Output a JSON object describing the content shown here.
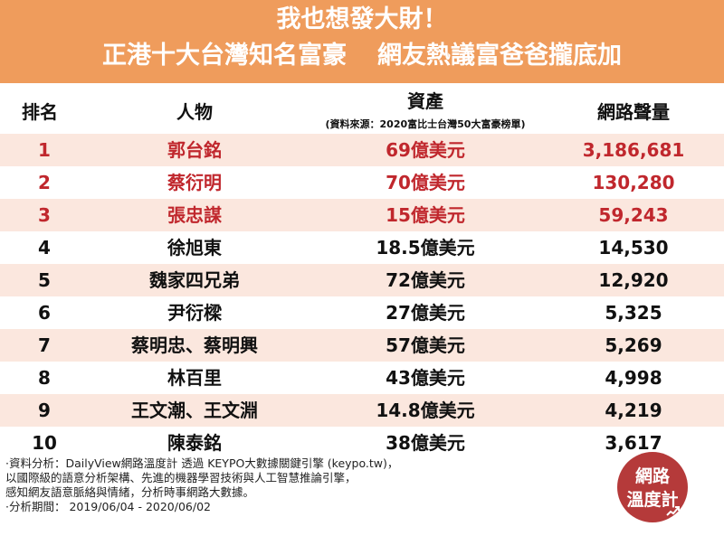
{
  "title": {
    "line1": "我也想發大財！",
    "line2_left": "正港十大台灣知名富豪",
    "line2_right": "網友熱議富爸爸攏底加"
  },
  "table": {
    "headers": {
      "rank": "排名",
      "person": "人物",
      "asset": "資產",
      "asset_note": "(資料來源：2020富比士台灣50大富豪榜單)",
      "volume": "網路聲量"
    },
    "rows": [
      {
        "rank": "1",
        "person": "郭台銘",
        "asset": "69億美元",
        "volume": "3,186,681"
      },
      {
        "rank": "2",
        "person": "蔡衍明",
        "asset": "70億美元",
        "volume": "130,280"
      },
      {
        "rank": "3",
        "person": "張忠謀",
        "asset": "15億美元",
        "volume": "59,243"
      },
      {
        "rank": "4",
        "person": "徐旭東",
        "asset": "18.5億美元",
        "volume": "14,530"
      },
      {
        "rank": "5",
        "person": "魏家四兄弟",
        "asset": "72億美元",
        "volume": "12,920"
      },
      {
        "rank": "6",
        "person": "尹衍樑",
        "asset": "27億美元",
        "volume": "5,325"
      },
      {
        "rank": "7",
        "person": "蔡明忠、蔡明興",
        "asset": "57億美元",
        "volume": "5,269"
      },
      {
        "rank": "8",
        "person": "林百里",
        "asset": "43億美元",
        "volume": "4,998"
      },
      {
        "rank": "9",
        "person": "王文潮、王文淵",
        "asset": "14.8億美元",
        "volume": "4,219"
      },
      {
        "rank": "10",
        "person": "陳泰銘",
        "asset": "38億美元",
        "volume": "3,617"
      }
    ]
  },
  "footer": {
    "line1": "·資料分析：DailyView網路溫度計 透過 KEYPO大數據關鍵引擎 (keypo.tw)，",
    "line2": "  以國際級的語意分析架構、先進的機器學習技術與人工智慧推論引擎，",
    "line3": "  感知網友語意脈絡與情緒，分析時事網路大數據。",
    "line4": "·分析期間： 2019/06/04 - 2020/06/02"
  },
  "logo": {
    "line1": "網路",
    "line2": "溫度計"
  },
  "colors": {
    "banner": "#ef9c5c",
    "highlight_text": "#c0272d",
    "alt_row": "#fbe7de",
    "logo_bg": "#b53a3a"
  }
}
